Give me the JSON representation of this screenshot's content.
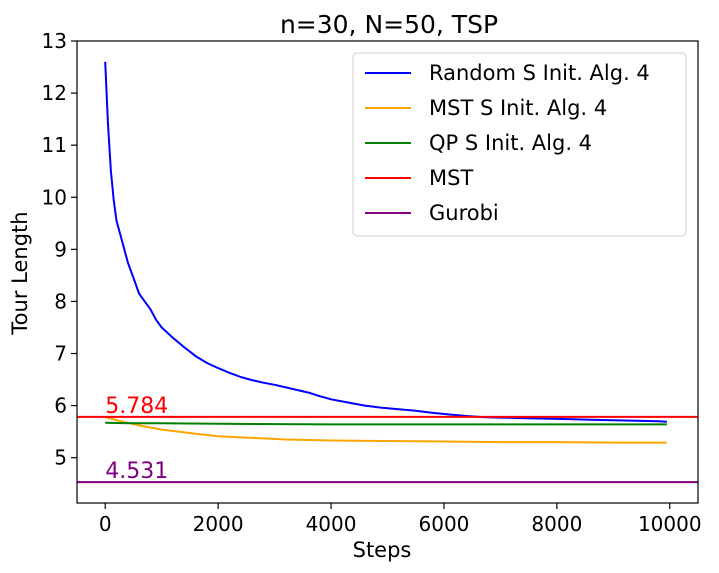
{
  "chart_data": {
    "type": "line",
    "title": "n=30, N=50, TSP",
    "xlabel": "Steps",
    "ylabel": "Tour Length",
    "xlim": [
      -500,
      10500
    ],
    "ylim": [
      4.13,
      13.0
    ],
    "xticks": [
      0,
      2000,
      4000,
      6000,
      8000,
      10000
    ],
    "xtick_labels": [
      "0",
      "2000",
      "4000",
      "6000",
      "8000",
      "10000"
    ],
    "yticks": [
      5,
      6,
      7,
      8,
      9,
      10,
      11,
      12,
      13
    ],
    "ytick_labels": [
      "5",
      "6",
      "7",
      "8",
      "9",
      "10",
      "11",
      "12",
      "13"
    ],
    "grid": false,
    "legend_position": "top-right",
    "series": [
      {
        "name": "Random S Init. Alg. 4",
        "color": "#0000ff",
        "kind": "line",
        "x": [
          0,
          50,
          100,
          150,
          200,
          300,
          400,
          500,
          600,
          700,
          800,
          900,
          1000,
          1200,
          1400,
          1600,
          1800,
          2000,
          2200,
          2400,
          2600,
          2800,
          3000,
          3200,
          3400,
          3600,
          3800,
          4000,
          4300,
          4600,
          4900,
          5200,
          5500,
          5800,
          6100,
          6400,
          6700,
          7000,
          7400,
          7800,
          8200,
          8600,
          9000,
          9400,
          9800,
          9950
        ],
        "y": [
          12.6,
          11.4,
          10.5,
          9.95,
          9.55,
          9.15,
          8.75,
          8.45,
          8.15,
          8.0,
          7.85,
          7.65,
          7.5,
          7.3,
          7.12,
          6.95,
          6.82,
          6.72,
          6.63,
          6.55,
          6.49,
          6.44,
          6.4,
          6.35,
          6.3,
          6.25,
          6.18,
          6.12,
          6.06,
          6.0,
          5.96,
          5.93,
          5.9,
          5.86,
          5.83,
          5.8,
          5.78,
          5.77,
          5.76,
          5.75,
          5.74,
          5.73,
          5.72,
          5.71,
          5.7,
          5.69
        ]
      },
      {
        "name": "MST S Init. Alg. 4",
        "color": "#ffa500",
        "kind": "line",
        "x": [
          0,
          100,
          200,
          400,
          600,
          800,
          1000,
          1300,
          1600,
          2000,
          2400,
          2800,
          3200,
          3600,
          4000,
          5000,
          6000,
          7000,
          8000,
          9000,
          9950
        ],
        "y": [
          5.78,
          5.75,
          5.72,
          5.67,
          5.62,
          5.58,
          5.54,
          5.5,
          5.46,
          5.41,
          5.39,
          5.37,
          5.35,
          5.34,
          5.33,
          5.32,
          5.31,
          5.3,
          5.3,
          5.29,
          5.29
        ]
      },
      {
        "name": "QP S Init. Alg. 4",
        "color": "#008000",
        "kind": "line",
        "x": [
          0,
          500,
          1000,
          2000,
          4000,
          6000,
          8000,
          9950
        ],
        "y": [
          5.67,
          5.66,
          5.66,
          5.65,
          5.64,
          5.64,
          5.64,
          5.64
        ]
      },
      {
        "name": "MST",
        "color": "#ff0000",
        "kind": "hline",
        "value": 5.784,
        "label": "5.784"
      },
      {
        "name": "Gurobi",
        "color": "#800080",
        "kind": "hline",
        "value": 4.531,
        "label": "4.531"
      }
    ]
  }
}
